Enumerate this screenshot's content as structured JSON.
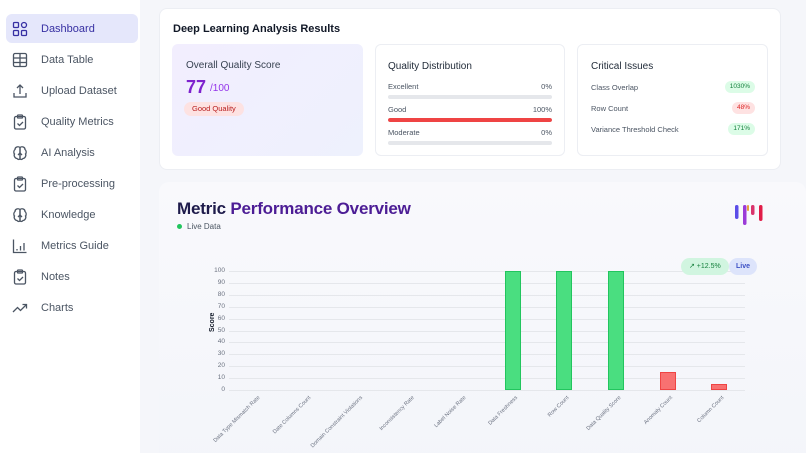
{
  "sidebar": {
    "items": [
      {
        "label": "Dashboard",
        "icon": "grid-icon",
        "active": true
      },
      {
        "label": "Data Table",
        "icon": "table-icon",
        "active": false
      },
      {
        "label": "Upload Dataset",
        "icon": "upload-icon",
        "active": false
      },
      {
        "label": "Quality Metrics",
        "icon": "clipboard-check-icon",
        "active": false
      },
      {
        "label": "AI Analysis",
        "icon": "brain-icon",
        "active": false
      },
      {
        "label": "Pre-processing",
        "icon": "clipboard-check-icon",
        "active": false
      },
      {
        "label": "Knowledge",
        "icon": "brain-icon",
        "active": false
      },
      {
        "label": "Metrics Guide",
        "icon": "bar-chart-icon",
        "active": false
      },
      {
        "label": "Notes",
        "icon": "clipboard-check-icon",
        "active": false
      },
      {
        "label": "Charts",
        "icon": "trending-up-icon",
        "active": false
      }
    ]
  },
  "results": {
    "title": "Deep Learning Analysis Results",
    "score": {
      "label": "Overall Quality Score",
      "value": "77",
      "max": "/100",
      "badge": "Good Quality"
    },
    "distribution": {
      "title": "Quality Distribution",
      "rows": [
        {
          "name": "Excellent",
          "pct": "0%",
          "fill": 0
        },
        {
          "name": "Good",
          "pct": "100%",
          "fill": 100
        },
        {
          "name": "Moderate",
          "pct": "0%",
          "fill": 0
        }
      ]
    },
    "issues": {
      "title": "Critical Issues",
      "rows": [
        {
          "name": "Class Overlap",
          "value": "1030%",
          "status": "green"
        },
        {
          "name": "Row Count",
          "value": "48%",
          "status": "red"
        },
        {
          "name": "Variance Threshold Check",
          "value": "171%",
          "status": "green"
        }
      ]
    }
  },
  "performance": {
    "title_part1": "Metric",
    "title_part2": "Performance Overview",
    "live_label": "Live Data",
    "trend_badge": "↗ +12.5%",
    "live_badge": "Live"
  },
  "colors": {
    "accent": "#4f46e5",
    "good_bar": "#4ade80",
    "bad_bar": "#f87171",
    "score": "#7e22ce"
  },
  "chart_data": {
    "type": "bar",
    "title": "Metric Performance Overview",
    "xlabel": "",
    "ylabel": "Score",
    "ylim": [
      0,
      100
    ],
    "yticks": [
      0,
      10,
      20,
      30,
      40,
      50,
      60,
      70,
      80,
      90,
      100
    ],
    "grid": true,
    "categories": [
      "Data Type Mismatch Rate",
      "Date Columns Count",
      "Domain Constraint Violations",
      "Inconsistency Rate",
      "Label Noise Rate",
      "Data Freshness",
      "Row Count",
      "Data Quality Score",
      "Anomaly Count",
      "Column Count"
    ],
    "values": [
      0,
      0,
      0,
      0,
      0,
      100,
      100,
      100,
      15,
      5
    ],
    "bar_colors": [
      "#4ade80",
      "#4ade80",
      "#4ade80",
      "#4ade80",
      "#4ade80",
      "#4ade80",
      "#4ade80",
      "#4ade80",
      "#f87171",
      "#f87171"
    ]
  }
}
